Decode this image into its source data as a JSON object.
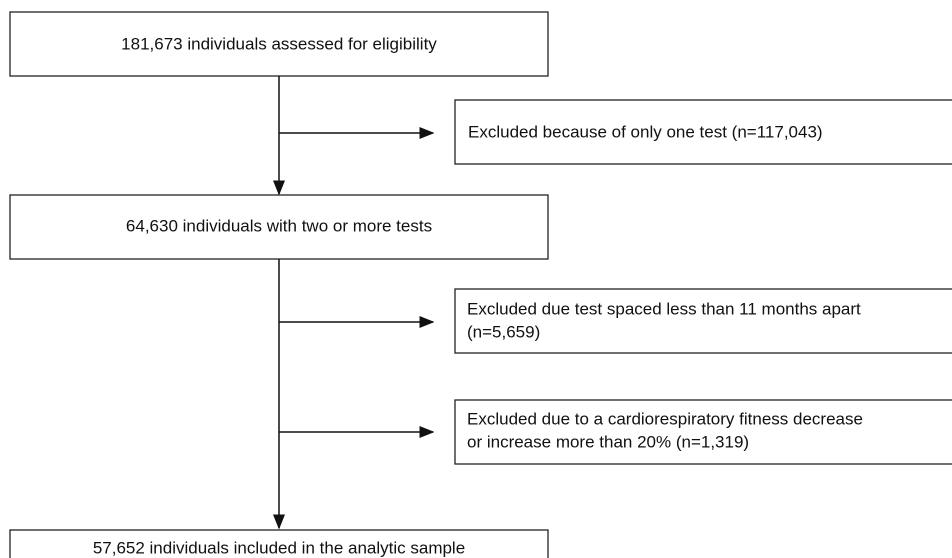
{
  "nodes": [
    {
      "label": "181,673 individuals assessed for eligibility"
    },
    {
      "label": "Excluded because of only one test (n=117,043)"
    },
    {
      "label": "64,630 individuals with two or more tests"
    },
    {
      "lines": [
        "Excluded due test spaced less than 11 months apart",
        "(n=5,659)"
      ]
    },
    {
      "lines": [
        "Excluded due to a cardiorespiratory fitness decrease",
        "or increase more than 20% (n=1,319)"
      ]
    },
    {
      "label": "57,652 individuals included in the analytic sample"
    }
  ]
}
